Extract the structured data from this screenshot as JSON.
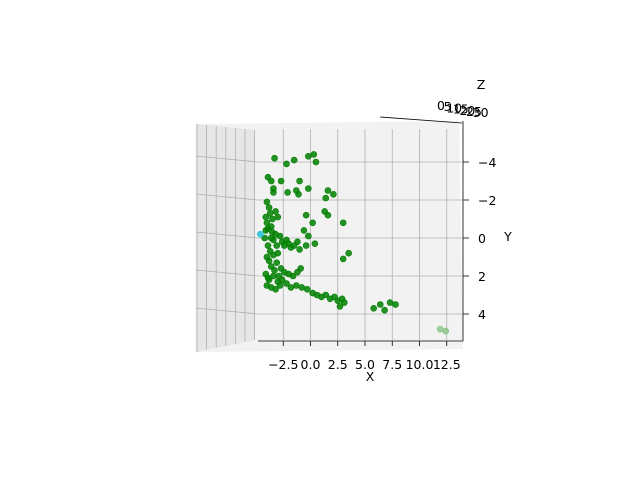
{
  "chart_data": {
    "type": "scatter",
    "projection": "3d",
    "axes": {
      "x": {
        "label": "X",
        "ticks": [
          "−2.5",
          "0.0",
          "2.5",
          "5.0",
          "7.5",
          "10.0",
          "12.5"
        ],
        "tick_values": [
          -2.5,
          0,
          2.5,
          5,
          7.5,
          10,
          12.5
        ]
      },
      "y": {
        "label": "Y",
        "ticks": [
          "−4",
          "−2",
          "0",
          "2",
          "4"
        ],
        "tick_values": [
          -4,
          -2,
          0,
          2,
          4
        ]
      },
      "z": {
        "label": "Z",
        "ticks": [
          "0",
          "5",
          "10",
          "15",
          "20",
          "25",
          "30"
        ],
        "tick_values": [
          0,
          5,
          10,
          15,
          20,
          25,
          30
        ]
      }
    },
    "grid": true,
    "colors": {
      "points": "#008000",
      "highlight": "#1fbfd6",
      "pane": "#f2f2f2",
      "grid": "#b0b0b0"
    },
    "series": [
      {
        "marker": "circle",
        "color": "#008000",
        "points": [
          [
            -3.3,
            -4.2
          ],
          [
            -2.2,
            -3.9
          ],
          [
            -1.5,
            -4.1
          ],
          [
            -0.2,
            -4.3
          ],
          [
            0.5,
            -4.0
          ],
          [
            0.3,
            -4.4
          ],
          [
            -3.9,
            -3.2
          ],
          [
            -3.6,
            -3.0
          ],
          [
            -3.4,
            -2.6
          ],
          [
            -2.7,
            -3.0
          ],
          [
            -1.0,
            -3.0
          ],
          [
            -0.2,
            -2.6
          ],
          [
            -3.4,
            -2.4
          ],
          [
            -2.1,
            -2.4
          ],
          [
            -1.3,
            -2.5
          ],
          [
            -1.1,
            -2.3
          ],
          [
            -0.4,
            -1.2
          ],
          [
            0.2,
            -0.8
          ],
          [
            1.6,
            -2.5
          ],
          [
            2.1,
            -2.3
          ],
          [
            1.4,
            -2.1
          ],
          [
            1.3,
            -1.4
          ],
          [
            1.6,
            -1.2
          ],
          [
            3.0,
            -0.8
          ],
          [
            -4.0,
            -1.9
          ],
          [
            -3.8,
            -1.6
          ],
          [
            -3.7,
            -1.3
          ],
          [
            -3.5,
            -1.0
          ],
          [
            -3.2,
            -1.4
          ],
          [
            -3.0,
            -1.1
          ],
          [
            -4.1,
            -1.1
          ],
          [
            -4.0,
            -0.8
          ],
          [
            -3.9,
            -0.5
          ],
          [
            -3.6,
            -0.6
          ],
          [
            -3.5,
            -0.3
          ],
          [
            -3.4,
            0.1
          ],
          [
            -4.1,
            -0.4
          ],
          [
            -4.2,
            0.0
          ],
          [
            -3.2,
            -0.2
          ],
          [
            -2.8,
            -0.1
          ],
          [
            -2.6,
            0.2
          ],
          [
            -2.4,
            0.4
          ],
          [
            -2.2,
            0.1
          ],
          [
            -2.0,
            0.3
          ],
          [
            -1.8,
            0.5
          ],
          [
            -1.5,
            0.4
          ],
          [
            -1.2,
            0.2
          ],
          [
            -1.0,
            0.6
          ],
          [
            -0.6,
            -0.4
          ],
          [
            -0.2,
            -0.1
          ],
          [
            -3.9,
            0.4
          ],
          [
            -3.7,
            0.7
          ],
          [
            -3.4,
            0.9
          ],
          [
            -3.0,
            0.8
          ],
          [
            -4.0,
            1.0
          ],
          [
            -3.8,
            1.2
          ],
          [
            -3.6,
            1.5
          ],
          [
            -3.3,
            1.7
          ],
          [
            -3.1,
            1.3
          ],
          [
            -2.7,
            1.6
          ],
          [
            -2.4,
            1.8
          ],
          [
            -2.0,
            1.9
          ],
          [
            -1.6,
            2.0
          ],
          [
            -1.2,
            1.8
          ],
          [
            -0.9,
            1.6
          ],
          [
            -0.4,
            0.4
          ],
          [
            0.4,
            0.3
          ],
          [
            -4.1,
            1.9
          ],
          [
            -3.9,
            2.1
          ],
          [
            -3.8,
            2.2
          ],
          [
            -3.4,
            2.0
          ],
          [
            -3.0,
            2.3
          ],
          [
            -2.6,
            2.2
          ],
          [
            -2.2,
            2.4
          ],
          [
            -1.8,
            2.6
          ],
          [
            -1.3,
            2.5
          ],
          [
            -0.8,
            2.6
          ],
          [
            -0.3,
            2.7
          ],
          [
            0.2,
            2.9
          ],
          [
            0.6,
            3.0
          ],
          [
            1.0,
            3.1
          ],
          [
            1.4,
            3.0
          ],
          [
            1.8,
            3.2
          ],
          [
            2.2,
            3.1
          ],
          [
            2.5,
            3.3
          ],
          [
            2.9,
            3.2
          ],
          [
            3.1,
            3.4
          ],
          [
            2.7,
            3.6
          ],
          [
            -4.0,
            2.5
          ],
          [
            -3.6,
            2.6
          ],
          [
            -3.2,
            2.7
          ],
          [
            -2.8,
            2.5
          ],
          [
            3.0,
            1.1
          ],
          [
            3.5,
            0.8
          ],
          [
            -3.1,
            0.4
          ],
          [
            -3.6,
            0.0
          ],
          [
            6.4,
            3.5
          ],
          [
            7.3,
            3.4
          ],
          [
            7.8,
            3.5
          ],
          [
            5.8,
            3.7
          ],
          [
            6.8,
            3.8
          ],
          [
            -2.9,
            2.0
          ]
        ]
      },
      {
        "marker": "circle",
        "color": "#1fbfd6",
        "points": [
          [
            -4.6,
            -0.2
          ]
        ]
      },
      {
        "marker": "circle",
        "color": "#7fbf7f",
        "points": [
          [
            11.9,
            4.8
          ],
          [
            12.4,
            4.9
          ]
        ]
      }
    ]
  }
}
